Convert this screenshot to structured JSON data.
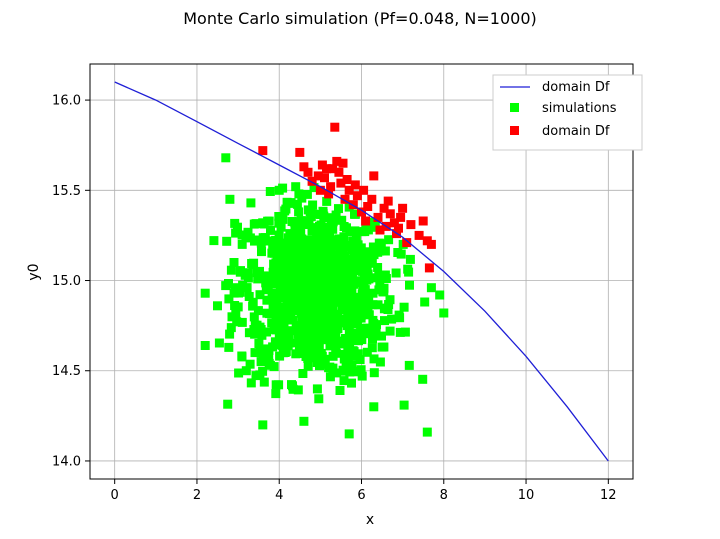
{
  "chart_data": {
    "type": "scatter",
    "title": "Monte Carlo simulation (Pf=0.048, N=1000)",
    "xlabel": "x",
    "ylabel": "y0",
    "xlim": [
      -0.6,
      12.6
    ],
    "ylim": [
      13.9,
      16.2
    ],
    "xticks": [
      0,
      2,
      4,
      6,
      8,
      10,
      12
    ],
    "yticks": [
      14.0,
      14.5,
      15.0,
      15.5,
      16.0
    ],
    "xtick_labels": [
      "0",
      "2",
      "4",
      "6",
      "8",
      "10",
      "12"
    ],
    "ytick_labels": [
      "14.0",
      "14.5",
      "15.0",
      "15.5",
      "16.0"
    ],
    "grid": true,
    "legend_position": "top-right",
    "colors": {
      "boundary": "#1f1fd6",
      "safe": "#00ff00",
      "failure": "#ff0000"
    },
    "series": [
      {
        "name": "domain Df",
        "kind": "line",
        "x": [
          0,
          1,
          2,
          3,
          4,
          5,
          6,
          7,
          8,
          9,
          10,
          11,
          12
        ],
        "y": [
          16.1,
          16.0,
          15.88,
          15.76,
          15.64,
          15.52,
          15.39,
          15.24,
          15.05,
          14.83,
          14.58,
          14.3,
          14.0
        ]
      },
      {
        "name": "simulations",
        "kind": "scatter",
        "count": 952,
        "x_mean": 4.9,
        "y_mean": 14.95,
        "x_sd": 0.95,
        "y_sd": 0.25,
        "outliers": [
          [
            2.7,
            15.68
          ],
          [
            2.8,
            15.45
          ],
          [
            2.2,
            14.93
          ],
          [
            2.2,
            14.64
          ],
          [
            2.5,
            14.86
          ],
          [
            3.6,
            14.2
          ],
          [
            5.7,
            14.15
          ],
          [
            7.6,
            14.16
          ],
          [
            8.0,
            14.82
          ],
          [
            7.9,
            14.92
          ],
          [
            7.7,
            14.96
          ],
          [
            2.9,
            15.1
          ],
          [
            3.1,
            15.2
          ],
          [
            4.6,
            14.22
          ],
          [
            3.2,
            14.5
          ],
          [
            4.0,
            15.5
          ],
          [
            4.4,
            15.52
          ],
          [
            6.3,
            14.3
          ]
        ]
      },
      {
        "name": "domain Df",
        "kind": "scatter",
        "count": 48,
        "points": [
          [
            3.6,
            15.72
          ],
          [
            4.5,
            15.71
          ],
          [
            5.35,
            15.85
          ],
          [
            4.6,
            15.63
          ],
          [
            4.8,
            15.55
          ],
          [
            5.1,
            15.57
          ],
          [
            5.3,
            15.62
          ],
          [
            5.4,
            15.66
          ],
          [
            5.0,
            15.5
          ],
          [
            5.2,
            15.48
          ],
          [
            5.5,
            15.54
          ],
          [
            5.6,
            15.45
          ],
          [
            5.8,
            15.42
          ],
          [
            6.0,
            15.38
          ],
          [
            6.3,
            15.58
          ],
          [
            6.1,
            15.33
          ],
          [
            6.4,
            15.35
          ],
          [
            6.6,
            15.3
          ],
          [
            6.7,
            15.37
          ],
          [
            6.8,
            15.32
          ],
          [
            6.9,
            15.29
          ],
          [
            7.2,
            15.31
          ],
          [
            7.5,
            15.33
          ],
          [
            7.6,
            15.22
          ],
          [
            7.7,
            15.2
          ],
          [
            7.65,
            15.07
          ],
          [
            5.15,
            15.62
          ],
          [
            5.45,
            15.6
          ],
          [
            5.9,
            15.47
          ],
          [
            6.25,
            15.45
          ],
          [
            6.55,
            15.4
          ],
          [
            5.7,
            15.5
          ],
          [
            4.95,
            15.58
          ],
          [
            5.25,
            15.52
          ],
          [
            6.15,
            15.41
          ],
          [
            6.45,
            15.28
          ],
          [
            6.85,
            15.26
          ],
          [
            7.1,
            15.21
          ],
          [
            5.55,
            15.65
          ],
          [
            4.7,
            15.6
          ],
          [
            5.05,
            15.64
          ],
          [
            6.05,
            15.5
          ],
          [
            6.95,
            15.35
          ],
          [
            7.4,
            15.25
          ],
          [
            5.65,
            15.56
          ],
          [
            5.85,
            15.53
          ],
          [
            6.65,
            15.44
          ],
          [
            7.0,
            15.4
          ]
        ]
      }
    ]
  }
}
